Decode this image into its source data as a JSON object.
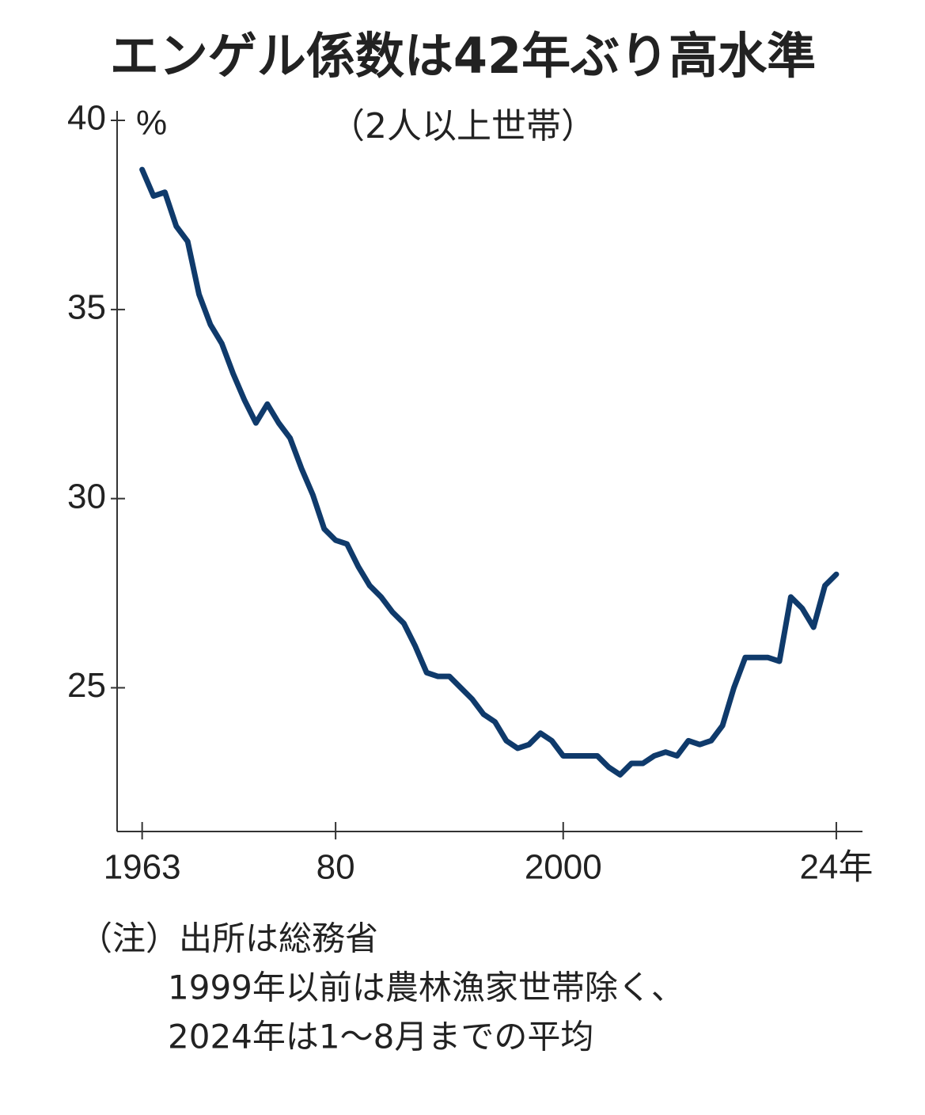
{
  "chart_data": {
    "type": "line",
    "title": "エンゲル係数は42年ぶり高水準",
    "subtitle": "（2人以上世帯）",
    "y_unit": "%",
    "notes": [
      "（注）出所は総務省",
      "1999年以前は農林漁家世帯除く、",
      "2024年は1～8月までの平均"
    ],
    "x": [
      1963,
      1964,
      1965,
      1966,
      1967,
      1968,
      1969,
      1970,
      1971,
      1972,
      1973,
      1974,
      1975,
      1976,
      1977,
      1978,
      1979,
      1980,
      1981,
      1982,
      1983,
      1984,
      1985,
      1986,
      1987,
      1988,
      1989,
      1990,
      1991,
      1992,
      1993,
      1994,
      1995,
      1996,
      1997,
      1998,
      1999,
      2000,
      2001,
      2002,
      2003,
      2004,
      2005,
      2006,
      2007,
      2008,
      2009,
      2010,
      2011,
      2012,
      2013,
      2014,
      2015,
      2016,
      2017,
      2018,
      2019,
      2020,
      2021,
      2022,
      2023,
      2024
    ],
    "series": [
      {
        "color": "#0f3a6b",
        "values": [
          38.7,
          38.0,
          38.1,
          37.2,
          36.8,
          35.4,
          34.6,
          34.1,
          33.3,
          32.6,
          32.0,
          32.5,
          32.0,
          31.6,
          30.8,
          30.1,
          29.2,
          28.9,
          28.8,
          28.2,
          27.7,
          27.4,
          27.0,
          26.7,
          26.1,
          25.4,
          25.3,
          25.3,
          25.0,
          24.7,
          24.3,
          24.1,
          23.6,
          23.4,
          23.5,
          23.8,
          23.6,
          23.2,
          23.2,
          23.2,
          23.2,
          22.9,
          22.7,
          23.0,
          23.0,
          23.2,
          23.3,
          23.2,
          23.6,
          23.5,
          23.6,
          24.0,
          25.0,
          25.8,
          25.8,
          25.8,
          25.7,
          27.4,
          27.1,
          26.6,
          27.7,
          28.0
        ]
      }
    ],
    "xlim": [
      1960.8,
      2026.3
    ],
    "xticks": [
      1963,
      {
        "value": 1980,
        "label": "80"
      },
      2000,
      {
        "value": 2024,
        "label": "24年"
      }
    ],
    "ylim": [
      21.2,
      40
    ],
    "yticks": [
      25,
      30,
      35,
      40
    ],
    "grid": false
  }
}
